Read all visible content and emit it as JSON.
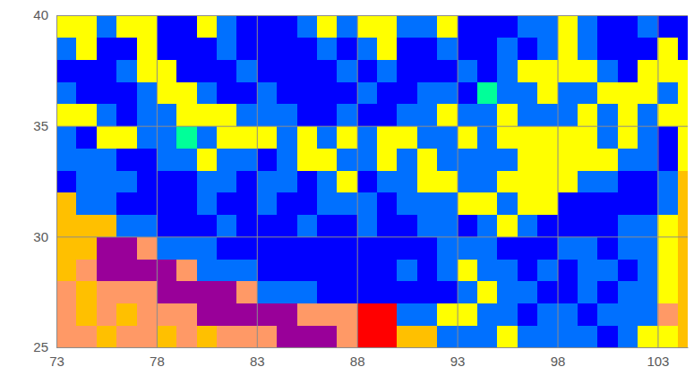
{
  "chart_data": {
    "type": "heatmap",
    "x": [
      73,
      74,
      75,
      76,
      77,
      78,
      79,
      80,
      81,
      82,
      83,
      84,
      85,
      86,
      87,
      88,
      89,
      90,
      91,
      92,
      93,
      94,
      95,
      96,
      97,
      98,
      99,
      100,
      101,
      102,
      103,
      104
    ],
    "y": [
      25,
      26,
      27,
      28,
      29,
      30,
      31,
      32,
      33,
      34,
      35,
      36,
      37,
      38,
      39
    ],
    "cells": [
      [
        6,
        6,
        5,
        6,
        6,
        5,
        6,
        5,
        6,
        6,
        6,
        7,
        7,
        7,
        6,
        8,
        8,
        5,
        5,
        2,
        2,
        2,
        4,
        2,
        2,
        2,
        2,
        1,
        2,
        4,
        4,
        5
      ],
      [
        6,
        5,
        6,
        5,
        6,
        6,
        6,
        7,
        7,
        7,
        7,
        7,
        6,
        6,
        6,
        8,
        8,
        2,
        2,
        4,
        4,
        2,
        2,
        1,
        2,
        2,
        1,
        2,
        2,
        2,
        6,
        5
      ],
      [
        6,
        5,
        6,
        6,
        6,
        7,
        7,
        7,
        7,
        6,
        2,
        2,
        2,
        1,
        1,
        1,
        1,
        1,
        1,
        1,
        2,
        4,
        2,
        2,
        1,
        1,
        2,
        1,
        2,
        2,
        4,
        5
      ],
      [
        5,
        6,
        7,
        7,
        7,
        7,
        6,
        2,
        2,
        2,
        1,
        1,
        1,
        1,
        1,
        1,
        1,
        2,
        1,
        2,
        4,
        2,
        2,
        1,
        2,
        1,
        2,
        2,
        1,
        2,
        4,
        5
      ],
      [
        5,
        5,
        7,
        7,
        6,
        2,
        2,
        2,
        1,
        1,
        1,
        1,
        1,
        1,
        1,
        1,
        1,
        1,
        1,
        2,
        2,
        2,
        1,
        1,
        1,
        2,
        2,
        1,
        2,
        2,
        4,
        5
      ],
      [
        5,
        5,
        5,
        2,
        2,
        1,
        1,
        1,
        2,
        1,
        1,
        1,
        2,
        1,
        1,
        2,
        1,
        1,
        2,
        2,
        1,
        2,
        4,
        2,
        1,
        1,
        1,
        1,
        2,
        2,
        4,
        5
      ],
      [
        5,
        2,
        2,
        1,
        1,
        1,
        1,
        2,
        1,
        1,
        2,
        1,
        1,
        2,
        2,
        2,
        1,
        2,
        2,
        2,
        4,
        4,
        2,
        4,
        4,
        1,
        1,
        1,
        1,
        1,
        2,
        5
      ],
      [
        1,
        2,
        2,
        2,
        1,
        1,
        1,
        2,
        2,
        1,
        2,
        2,
        1,
        2,
        4,
        1,
        2,
        2,
        4,
        4,
        2,
        2,
        4,
        4,
        4,
        4,
        2,
        2,
        1,
        1,
        2,
        5
      ],
      [
        2,
        2,
        2,
        1,
        1,
        2,
        2,
        4,
        2,
        2,
        1,
        2,
        4,
        4,
        2,
        2,
        4,
        2,
        4,
        2,
        2,
        2,
        2,
        4,
        4,
        4,
        4,
        4,
        2,
        2,
        1,
        4
      ],
      [
        2,
        1,
        4,
        4,
        2,
        2,
        3,
        2,
        4,
        4,
        4,
        2,
        4,
        2,
        4,
        2,
        4,
        4,
        2,
        2,
        4,
        2,
        4,
        4,
        4,
        4,
        4,
        2,
        4,
        2,
        1,
        4
      ],
      [
        4,
        4,
        2,
        1,
        2,
        2,
        4,
        4,
        4,
        2,
        2,
        2,
        1,
        1,
        2,
        1,
        1,
        2,
        2,
        4,
        2,
        2,
        4,
        2,
        2,
        2,
        4,
        2,
        4,
        2,
        4,
        4
      ],
      [
        2,
        1,
        1,
        1,
        2,
        4,
        4,
        2,
        1,
        1,
        2,
        1,
        1,
        1,
        1,
        2,
        1,
        1,
        2,
        2,
        1,
        3,
        2,
        2,
        4,
        2,
        2,
        4,
        4,
        4,
        2,
        4
      ],
      [
        1,
        1,
        1,
        2,
        4,
        4,
        1,
        1,
        1,
        2,
        1,
        1,
        1,
        1,
        2,
        1,
        2,
        1,
        1,
        1,
        2,
        1,
        2,
        4,
        4,
        4,
        4,
        2,
        1,
        4,
        4,
        4
      ],
      [
        2,
        4,
        1,
        1,
        4,
        1,
        1,
        1,
        2,
        1,
        1,
        1,
        1,
        2,
        1,
        2,
        4,
        1,
        1,
        2,
        1,
        1,
        2,
        1,
        2,
        4,
        2,
        1,
        1,
        1,
        4,
        1
      ],
      [
        4,
        4,
        2,
        4,
        4,
        1,
        1,
        4,
        2,
        1,
        1,
        1,
        2,
        4,
        2,
        4,
        4,
        2,
        2,
        4,
        1,
        1,
        1,
        2,
        2,
        4,
        2,
        1,
        1,
        2,
        1,
        1
      ]
    ],
    "color_codes": [
      1,
      2,
      3,
      4,
      5,
      6,
      7,
      8
    ],
    "colors": [
      "#0000ff",
      "#0070ff",
      "#00ff99",
      "#ffff00",
      "#ffc000",
      "#ff9966",
      "#990099",
      "#ff0000"
    ],
    "xlim": [
      73,
      104.5
    ],
    "ylim": [
      25,
      40
    ],
    "xticks": [
      73,
      78,
      83,
      88,
      93,
      98,
      103
    ],
    "yticks": [
      25,
      30,
      35,
      40
    ],
    "grid": true
  }
}
